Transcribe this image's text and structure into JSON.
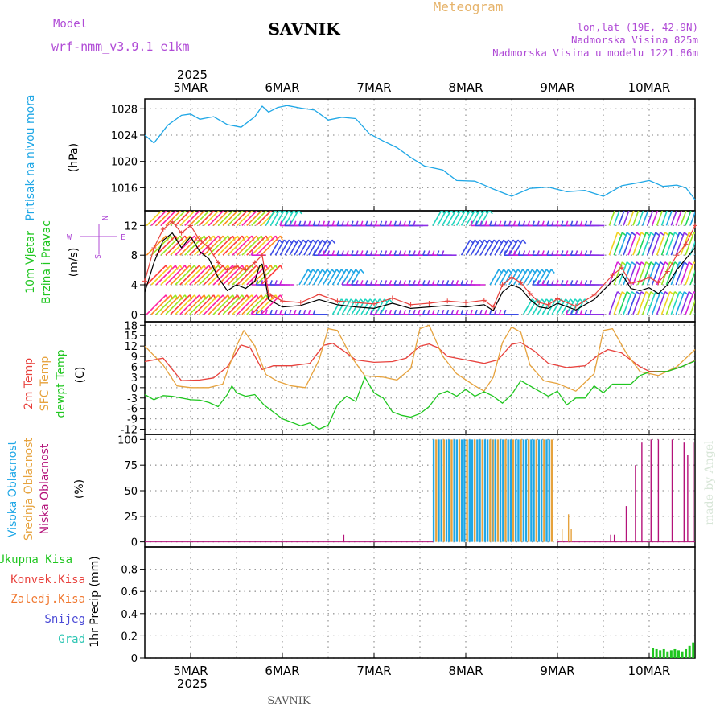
{
  "header": {
    "model_label": "Model",
    "model_name": "wrf-nmm_v3.9.1  e1km",
    "station": "SAVNIK",
    "product": "Meteogram",
    "coords": "lon,lat (19E, 42.9N)",
    "altitude": "Nadmorska Visina 825m",
    "model_altitude": "Nadmorska Visina u modelu 1221.86m",
    "footer_station": "SAVNIK",
    "credit": "made by Angel"
  },
  "colors": {
    "pressure": "#1fa7e6",
    "temp2m": "#e8413c",
    "sfc_temp": "#e6a23c",
    "dewpt": "#1fc61f",
    "cloud_high": "#1fa7e6",
    "cloud_mid": "#e6a23c",
    "cloud_low": "#b4127a",
    "precip_total": "#1fc61f",
    "wind_speed": "#000000",
    "gust": "#e8413c"
  },
  "time_axis": {
    "year": "2025",
    "days": [
      "5MAR",
      "6MAR",
      "7MAR",
      "8MAR",
      "9MAR",
      "10MAR"
    ],
    "range_days": [
      4.5,
      10.5
    ]
  },
  "chart_data": [
    {
      "type": "line",
      "id": "pressure",
      "ylabel": "Pritisak na nivou mora",
      "unit": "(hPa)",
      "ylim": [
        1012.5,
        1029.5
      ],
      "yticks": [
        1016,
        1020,
        1024,
        1028
      ],
      "grid": true,
      "series": [
        {
          "x": [
            4.5,
            4.6,
            4.75,
            4.9,
            5.0,
            5.1,
            5.25,
            5.4,
            5.55,
            5.7,
            5.78,
            5.85,
            5.95,
            6.05,
            6.2,
            6.35,
            6.5,
            6.65,
            6.8,
            6.95,
            7.1,
            7.25,
            7.4,
            7.55,
            7.75,
            7.9,
            8.1,
            8.3,
            8.5,
            8.7,
            8.9,
            9.1,
            9.3,
            9.5,
            9.7,
            9.9,
            10.0,
            10.15,
            10.3,
            10.4,
            10.5
          ],
          "values": [
            1024,
            1022.8,
            1025.5,
            1027,
            1027.2,
            1026.4,
            1026.8,
            1025.6,
            1025.2,
            1026.8,
            1028.4,
            1027.5,
            1028.2,
            1028.5,
            1028.1,
            1027.8,
            1026.3,
            1026.7,
            1026.5,
            1024.2,
            1023.1,
            1022.1,
            1020.6,
            1019.3,
            1018.7,
            1017.1,
            1017.0,
            1015.8,
            1014.7,
            1015.9,
            1016.1,
            1015.4,
            1015.6,
            1014.7,
            1016.3,
            1016.8,
            1017.1,
            1016.2,
            1016.4,
            1016.0,
            1014.2
          ]
        }
      ]
    },
    {
      "type": "line",
      "id": "wind",
      "ylabel_lines": [
        "10m Vjetar",
        "Brzina i Pravac"
      ],
      "unit": "(m/s)",
      "compass": {
        "north": "N",
        "west": "W",
        "east": "E",
        "south": "S"
      },
      "ylim": [
        -1,
        14
      ],
      "yticks": [
        0,
        4,
        8,
        12
      ],
      "grid": true,
      "series": [
        {
          "name": "speed",
          "x": [
            4.5,
            4.6,
            4.7,
            4.8,
            4.9,
            5.0,
            5.1,
            5.2,
            5.3,
            5.4,
            5.5,
            5.6,
            5.7,
            5.75,
            5.78,
            5.85,
            6.0,
            6.2,
            6.4,
            6.6,
            6.8,
            7.0,
            7.2,
            7.4,
            7.6,
            7.8,
            8.0,
            8.2,
            8.3,
            8.4,
            8.5,
            8.6,
            8.7,
            8.8,
            8.9,
            9.0,
            9.2,
            9.4,
            9.6,
            9.7,
            9.8,
            9.9,
            10.0,
            10.1,
            10.2,
            10.3,
            10.4,
            10.5
          ],
          "values": [
            3,
            7,
            10,
            11,
            9,
            10.5,
            8.5,
            7.5,
            5,
            3.2,
            4,
            3.5,
            4.5,
            6.5,
            6.8,
            2,
            1,
            1.2,
            2,
            1.3,
            1,
            0.8,
            1.5,
            0.8,
            1,
            1.2,
            1,
            1.3,
            0.5,
            3,
            4,
            3.5,
            2,
            1,
            0.8,
            1.5,
            0.6,
            2,
            4.5,
            5.5,
            3.5,
            3.2,
            3.6,
            2.8,
            4,
            6,
            7.5,
            9
          ]
        },
        {
          "name": "gust",
          "x": [
            4.5,
            4.6,
            4.7,
            4.8,
            4.9,
            5.0,
            5.1,
            5.2,
            5.3,
            5.4,
            5.5,
            5.6,
            5.7,
            5.78,
            5.85,
            6.0,
            6.2,
            6.4,
            6.6,
            6.8,
            7.0,
            7.2,
            7.4,
            7.6,
            7.8,
            8.0,
            8.2,
            8.3,
            8.4,
            8.5,
            8.6,
            8.7,
            8.8,
            8.9,
            9.0,
            9.2,
            9.4,
            9.6,
            9.7,
            9.8,
            9.9,
            10.0,
            10.1,
            10.2,
            10.3,
            10.4,
            10.5
          ],
          "values": [
            4.5,
            9,
            11.5,
            12.5,
            11,
            12,
            10,
            9,
            7,
            6,
            6.5,
            6,
            7,
            8,
            2.8,
            1.8,
            1.6,
            2.7,
            1.8,
            1.6,
            1.4,
            2.2,
            1.3,
            1.5,
            1.8,
            1.6,
            1.9,
            1,
            4,
            5,
            4.3,
            2.8,
            1.6,
            1.3,
            2.1,
            1.1,
            2.6,
            5.3,
            6.3,
            4.2,
            4.5,
            5,
            4.3,
            5.8,
            8,
            9.5,
            12
          ]
        }
      ],
      "barb_rows": [
        0,
        4,
        8,
        12
      ]
    },
    {
      "type": "line",
      "id": "temperature",
      "ylabel_lines": [
        "2m Temp",
        "SFC Temp",
        "dewpt Temp"
      ],
      "unit": "(C)",
      "ylim": [
        -13.5,
        19
      ],
      "yticks": [
        -12,
        -9,
        -6,
        -3,
        0,
        3,
        6,
        9,
        12,
        15,
        18
      ],
      "grid": true,
      "series": [
        {
          "name": "2m Temp",
          "x": [
            4.5,
            4.7,
            4.9,
            5.1,
            5.25,
            5.4,
            5.55,
            5.65,
            5.78,
            5.9,
            6.1,
            6.3,
            6.45,
            6.55,
            6.7,
            6.8,
            7.0,
            7.2,
            7.35,
            7.5,
            7.6,
            7.7,
            7.8,
            8.0,
            8.2,
            8.35,
            8.5,
            8.6,
            8.75,
            8.9,
            9.1,
            9.3,
            9.45,
            9.55,
            9.7,
            9.9,
            10.0,
            10.2,
            10.35,
            10.5
          ],
          "values": [
            7.5,
            8.5,
            2,
            2.2,
            2.8,
            6,
            12.3,
            11.5,
            5.2,
            6.3,
            6.3,
            7,
            12.2,
            12.8,
            10,
            8,
            7.3,
            7.5,
            8.5,
            12,
            12.6,
            11.5,
            9,
            8,
            7,
            8,
            12.5,
            13,
            10.5,
            7,
            5.8,
            6.3,
            9.5,
            11,
            10,
            6,
            4.7,
            4.7,
            6,
            7.8
          ]
        },
        {
          "name": "SFC Temp",
          "x": [
            4.5,
            4.7,
            4.85,
            5.0,
            5.2,
            5.35,
            5.5,
            5.58,
            5.7,
            5.82,
            5.95,
            6.1,
            6.25,
            6.4,
            6.5,
            6.6,
            6.75,
            6.9,
            7.1,
            7.25,
            7.4,
            7.5,
            7.6,
            7.75,
            7.9,
            8.1,
            8.2,
            8.3,
            8.4,
            8.5,
            8.6,
            8.7,
            8.85,
            9.0,
            9.2,
            9.4,
            9.5,
            9.6,
            9.75,
            9.9,
            10.1,
            10.3,
            10.5
          ],
          "values": [
            12,
            6.5,
            0.5,
            0,
            0,
            1,
            12,
            16.5,
            12,
            3.8,
            1.8,
            0.5,
            0,
            8,
            17,
            16.5,
            9,
            3.4,
            3,
            2.2,
            5.5,
            17,
            18,
            9,
            4,
            0.5,
            -1,
            3,
            13,
            17.5,
            16,
            6.5,
            2,
            1.2,
            -1,
            4,
            16.5,
            17,
            10,
            4.6,
            3.5,
            6,
            11
          ]
        },
        {
          "name": "dewpt Temp",
          "x": [
            4.5,
            4.6,
            4.7,
            4.8,
            5.0,
            5.1,
            5.2,
            5.3,
            5.4,
            5.45,
            5.5,
            5.6,
            5.7,
            5.8,
            5.9,
            6.0,
            6.1,
            6.2,
            6.3,
            6.4,
            6.5,
            6.6,
            6.7,
            6.8,
            6.9,
            7.0,
            7.1,
            7.2,
            7.3,
            7.4,
            7.5,
            7.6,
            7.7,
            7.8,
            7.9,
            8.0,
            8.1,
            8.2,
            8.3,
            8.4,
            8.5,
            8.6,
            8.7,
            8.8,
            8.9,
            9.0,
            9.1,
            9.2,
            9.3,
            9.4,
            9.5,
            9.6,
            9.7,
            9.8,
            9.9,
            10.0,
            10.2,
            10.35,
            10.5
          ],
          "values": [
            -2,
            -3.5,
            -2.3,
            -2.5,
            -3.5,
            -3.6,
            -4.3,
            -5.5,
            -2,
            0.5,
            -1.5,
            -2.5,
            -2,
            -5,
            -7,
            -9,
            -10,
            -11,
            -10.2,
            -12,
            -10.8,
            -5,
            -2.5,
            -4,
            3,
            -1.5,
            -3,
            -7,
            -8,
            -8.5,
            -7.5,
            -5.5,
            -2,
            -1,
            -2.5,
            -0.5,
            -2.5,
            -1.2,
            -2.5,
            -4.5,
            -2,
            2,
            0.5,
            -1,
            -2.5,
            -1,
            -5,
            -3,
            -3,
            0.5,
            -1.5,
            1,
            1,
            1,
            3.5,
            4.5,
            4.7,
            6,
            7.7
          ]
        }
      ]
    },
    {
      "type": "bar",
      "id": "clouds",
      "ylabel_lines": [
        "Visoka Oblacnost",
        "Srednja Oblacnost",
        "Niska Oblacnost"
      ],
      "unit": "(%)",
      "ylim": [
        -5,
        105
      ],
      "yticks": [
        0,
        25,
        50,
        75,
        100
      ],
      "grid": true,
      "series": [
        {
          "name": "Visoka Oblacnost",
          "x_range": [
            7.65,
            8.95
          ],
          "values_note": "",
          "value": 100
        },
        {
          "name": "Srednja Oblacnost",
          "x": [
            8.3,
            9.05,
            9.12,
            9.15
          ],
          "values": [
            100,
            13,
            27,
            13
          ]
        },
        {
          "name": "Niska Oblacnost",
          "x": [
            6.67,
            9.58,
            9.62,
            9.75,
            9.85,
            9.92,
            10.02,
            10.1,
            10.25,
            10.38,
            10.42,
            10.48
          ],
          "values": [
            7,
            7,
            7,
            35,
            75,
            97,
            100,
            100,
            100,
            97,
            85,
            97
          ]
        }
      ]
    },
    {
      "type": "bar",
      "id": "precip",
      "ylabel_lines": [
        "Ukupna Kisa",
        "Konvek.Kisa",
        "Zaledj.Kisa",
        "Snijeg",
        "Grad"
      ],
      "unit": "1hr Precip (mm)",
      "ylim": [
        0,
        1.0
      ],
      "yticks": [
        0,
        0.2,
        0.4,
        0.6,
        0.8
      ],
      "grid": true,
      "series": [
        {
          "name": "Ukupna Kisa",
          "x": [
            10.04,
            10.08,
            10.12,
            10.16,
            10.2,
            10.24,
            10.28,
            10.32,
            10.36,
            10.4,
            10.44,
            10.48
          ],
          "values": [
            0.09,
            0.08,
            0.07,
            0.08,
            0.06,
            0.07,
            0.08,
            0.07,
            0.06,
            0.08,
            0.11,
            0.14
          ]
        }
      ]
    }
  ]
}
